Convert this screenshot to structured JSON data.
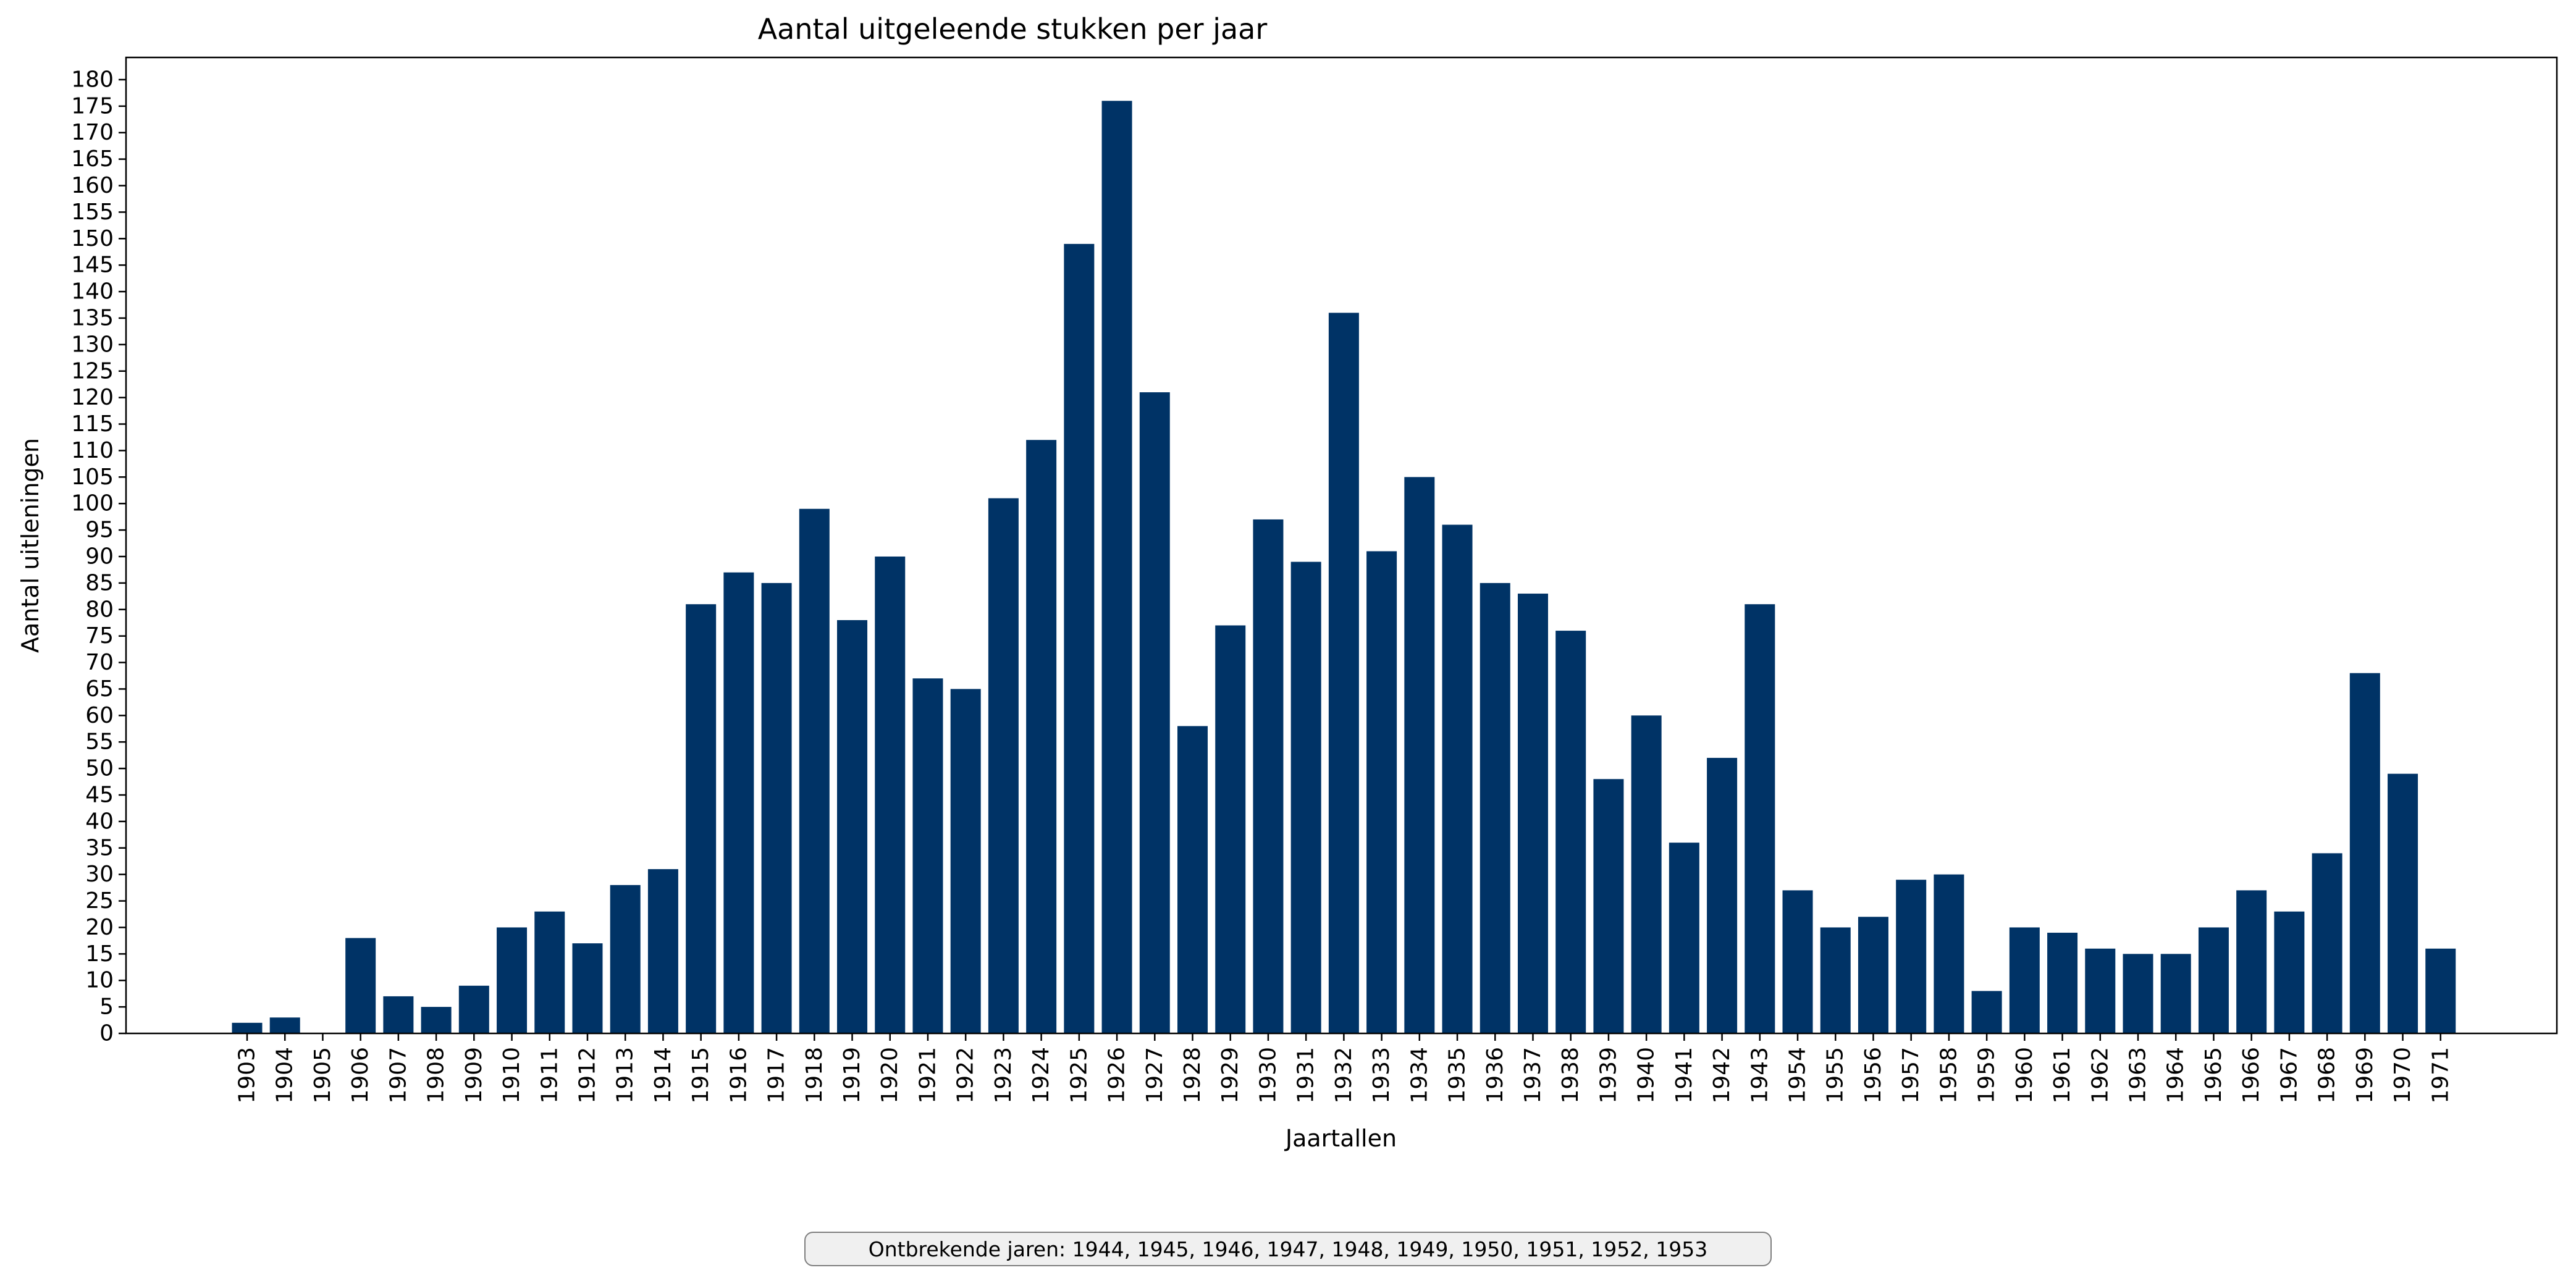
{
  "chart_data": {
    "type": "bar",
    "title": "Aantal uitgeleende stukken per jaar",
    "xlabel": "Jaartallen",
    "ylabel": "Aantal uitleningen",
    "ylim": [
      0,
      185
    ],
    "yticks": [
      0,
      5,
      10,
      15,
      20,
      25,
      30,
      35,
      40,
      45,
      50,
      55,
      60,
      65,
      70,
      75,
      80,
      85,
      90,
      95,
      100,
      105,
      110,
      115,
      120,
      125,
      130,
      135,
      140,
      145,
      150,
      155,
      160,
      165,
      170,
      175,
      180
    ],
    "grid": false,
    "bar_color": "#003366",
    "categories": [
      "1903",
      "1904",
      "1905",
      "1906",
      "1907",
      "1908",
      "1909",
      "1910",
      "1911",
      "1912",
      "1913",
      "1914",
      "1915",
      "1916",
      "1917",
      "1918",
      "1919",
      "1920",
      "1921",
      "1922",
      "1923",
      "1924",
      "1925",
      "1926",
      "1927",
      "1928",
      "1929",
      "1930",
      "1931",
      "1932",
      "1933",
      "1934",
      "1935",
      "1936",
      "1937",
      "1938",
      "1939",
      "1940",
      "1941",
      "1942",
      "1943",
      "1954",
      "1955",
      "1956",
      "1957",
      "1958",
      "1959",
      "1960",
      "1961",
      "1962",
      "1963",
      "1964",
      "1965",
      "1966",
      "1967",
      "1968",
      "1969",
      "1970",
      "1971"
    ],
    "values": [
      2,
      3,
      0,
      18,
      7,
      5,
      9,
      20,
      23,
      17,
      28,
      31,
      81,
      87,
      85,
      99,
      78,
      90,
      67,
      65,
      101,
      112,
      149,
      176,
      121,
      58,
      77,
      97,
      89,
      136,
      91,
      105,
      96,
      85,
      83,
      76,
      48,
      60,
      36,
      52,
      81,
      27,
      20,
      22,
      29,
      30,
      8,
      20,
      19,
      16,
      15,
      15,
      20,
      27,
      23,
      34,
      68,
      49,
      16
    ],
    "annotation": "Ontbrekende jaren: 1944, 1945, 1946, 1947, 1948, 1949, 1950, 1951, 1952, 1953"
  }
}
